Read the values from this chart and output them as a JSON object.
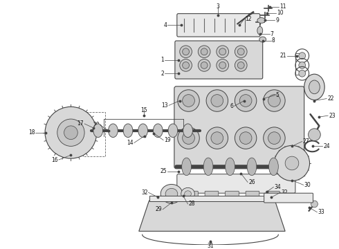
{
  "bg_color": "#ffffff",
  "lc": "#444444",
  "lc2": "#666666",
  "fs": 5.5,
  "fc_light": "#e8e8e8",
  "fc_mid": "#d8d8d8",
  "fc_dark": "#c8c8c8",
  "fc_darker": "#b8b8b8"
}
